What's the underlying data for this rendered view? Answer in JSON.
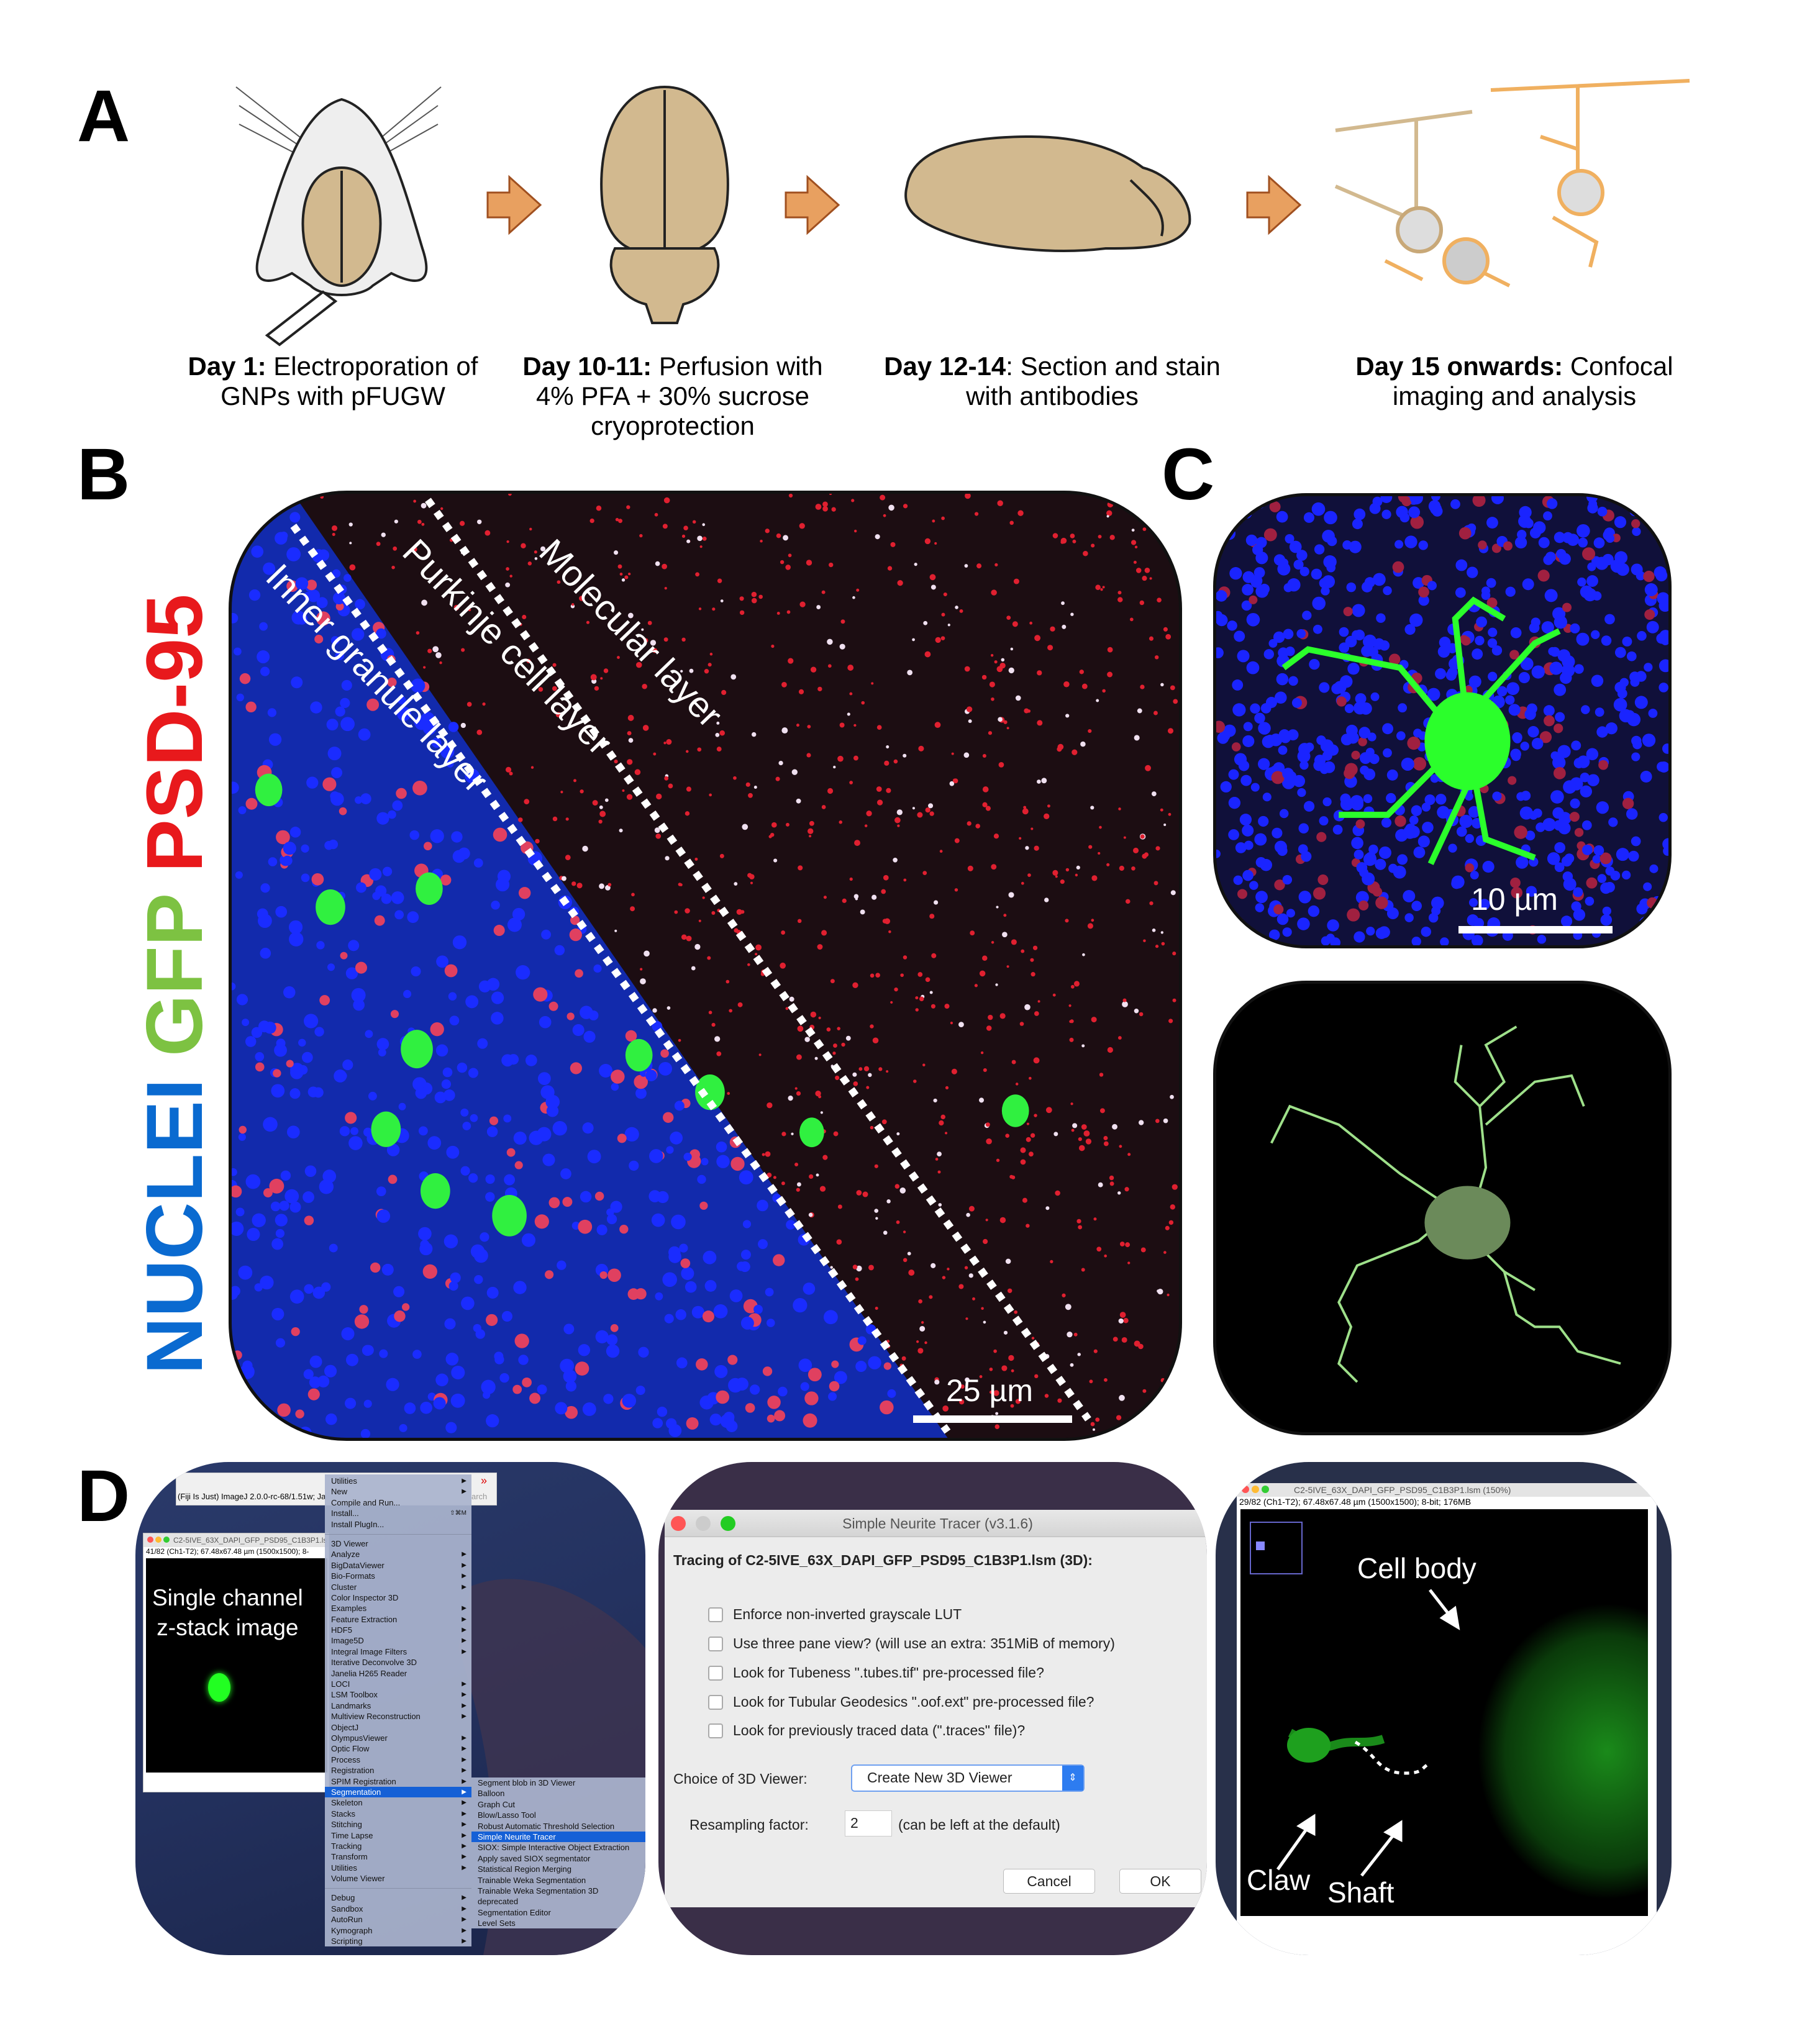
{
  "panel_labels": {
    "a": "A",
    "b": "B",
    "c": "C",
    "d": "D"
  },
  "panel_a": {
    "steps": [
      {
        "bold": "Day 1:",
        "text": " Electroporation of",
        "line2": "GNPs with pFUGW",
        "line3": ""
      },
      {
        "bold": "Day 10-11:",
        "text": " Perfusion with",
        "line2": "4% PFA + 30% sucrose",
        "line3": "cryoprotection"
      },
      {
        "bold": "Day 12-14",
        "text": ": Section and stain",
        "line2": "with antibodies",
        "line3": ""
      },
      {
        "bold": "Day 15 onwards:",
        "text": " Confocal",
        "line2": "imaging and analysis",
        "line3": ""
      }
    ],
    "arrow_color": "#e8a060",
    "tissue_color": "#d2b98f",
    "neuron_color": "#f0b060"
  },
  "stain_label": {
    "nuclei": "NUCLEI",
    "gfp": "GFP",
    "psd95": "PSD-95",
    "colors": {
      "nuclei": "#0a6ad0",
      "gfp": "#7dc242",
      "psd95": "#e8191c"
    }
  },
  "panel_b": {
    "layers": [
      "Inner granule layer",
      "Purkinje cell layer",
      "Molecular layer"
    ],
    "scale": "25 µm"
  },
  "panel_c": {
    "scale": "10 µm"
  },
  "panel_d": {
    "fiji_toolbar_title": "(Fiji Is Just) ImageJ 2.0.0-rc-68/1.51w; Ja",
    "fiji_search_fragment": "arch",
    "image_window_title": "C2-5IVE_63X_DAPI_GFP_PSD95_C1B3P1.ls",
    "image_window_info": "41/82 (Ch1-T2); 67.48x67.48 µm (1500x1500); 8-",
    "overlay_text": [
      "Single channel",
      "z-stack image"
    ],
    "menu_top": [
      {
        "label": "Utilities",
        "sub": true
      },
      {
        "label": "New",
        "sub": true
      },
      {
        "label": "Compile and Run...",
        "sub": false
      },
      {
        "label": "Install...",
        "sub": false,
        "shortcut": "⇧⌘M"
      },
      {
        "label": "Install PlugIn...",
        "sub": false
      }
    ],
    "menu_main": [
      {
        "label": "3D Viewer",
        "sub": false
      },
      {
        "label": "Analyze",
        "sub": true
      },
      {
        "label": "BigDataViewer",
        "sub": true
      },
      {
        "label": "Bio-Formats",
        "sub": true
      },
      {
        "label": "Cluster",
        "sub": true
      },
      {
        "label": "Color Inspector 3D",
        "sub": false
      },
      {
        "label": "Examples",
        "sub": true
      },
      {
        "label": "Feature Extraction",
        "sub": true
      },
      {
        "label": "HDF5",
        "sub": true
      },
      {
        "label": "Image5D",
        "sub": true
      },
      {
        "label": "Integral Image Filters",
        "sub": true
      },
      {
        "label": "Iterative Deconvolve 3D",
        "sub": false
      },
      {
        "label": "Janelia H265 Reader",
        "sub": false
      },
      {
        "label": "LOCI",
        "sub": true
      },
      {
        "label": "LSM Toolbox",
        "sub": true
      },
      {
        "label": "Landmarks",
        "sub": true
      },
      {
        "label": "Multiview Reconstruction",
        "sub": true
      },
      {
        "label": "ObjectJ",
        "sub": false
      },
      {
        "label": "OlympusViewer",
        "sub": true
      },
      {
        "label": "Optic Flow",
        "sub": true
      },
      {
        "label": "Process",
        "sub": true
      },
      {
        "label": "Registration",
        "sub": true
      },
      {
        "label": "SPIM Registration",
        "sub": true
      },
      {
        "label": "Segmentation",
        "sub": true,
        "selected": true
      },
      {
        "label": "Skeleton",
        "sub": true
      },
      {
        "label": "Stacks",
        "sub": true
      },
      {
        "label": "Stitching",
        "sub": true
      },
      {
        "label": "Time Lapse",
        "sub": true
      },
      {
        "label": "Tracking",
        "sub": true
      },
      {
        "label": "Transform",
        "sub": true
      },
      {
        "label": "Utilities",
        "sub": true
      },
      {
        "label": "Volume Viewer",
        "sub": false
      }
    ],
    "menu_bottom": [
      {
        "label": "Debug",
        "sub": true
      },
      {
        "label": "Sandbox",
        "sub": true
      },
      {
        "label": "AutoRun",
        "sub": true
      },
      {
        "label": "Kymograph",
        "sub": true
      },
      {
        "label": "Scripting",
        "sub": true
      }
    ],
    "submenu": [
      {
        "label": "Segment blob in 3D Viewer"
      },
      {
        "label": "Balloon"
      },
      {
        "label": "Graph Cut"
      },
      {
        "label": "Blow/Lasso Tool"
      },
      {
        "label": "Robust Automatic Threshold Selection"
      },
      {
        "label": "Simple Neurite Tracer",
        "selected": true
      },
      {
        "label": "SIOX: Simple Interactive Object Extraction"
      },
      {
        "label": "Apply saved SIOX segmentator"
      },
      {
        "label": "Statistical Region Merging"
      },
      {
        "label": "Trainable Weka Segmentation"
      },
      {
        "label": "Trainable Weka Segmentation 3D"
      },
      {
        "label": "deprecated",
        "sub": true
      },
      {
        "label": "Segmentation Editor"
      },
      {
        "label": "Level Sets"
      }
    ],
    "dialog": {
      "title": "Simple Neurite Tracer (v3.1.6)",
      "heading": "Tracing of C2-5IVE_63X_DAPI_GFP_PSD95_C1B3P1.lsm (3D):",
      "checkboxes": [
        {
          "label": "Enforce non-inverted grayscale LUT",
          "checked": false
        },
        {
          "label": "Use three pane view?  (will use an extra: 351MiB of memory)",
          "checked": false
        },
        {
          "label": "Look for Tubeness \".tubes.tif\" pre-processed file?",
          "checked": false
        },
        {
          "label": "Look for Tubular Geodesics \".oof.ext\" pre-processed file?",
          "checked": false
        },
        {
          "label": "Look for previously traced data (\".traces\" file)?",
          "checked": false
        }
      ],
      "viewer_label": "Choice of 3D Viewer:",
      "viewer_value": "Create New 3D Viewer",
      "resampling_label": "Resampling factor:",
      "resampling_value": "2",
      "resampling_hint": "(can be left at the default)",
      "cancel": "Cancel",
      "ok": "OK"
    },
    "tracer_window_title": "C2-5IVE_63X_DAPI_GFP_PSD95_C1B3P1.lsm (150%)",
    "tracer_window_info": "29/82 (Ch1-T2); 67.48x67.48 µm (1500x1500); 8-bit; 176MB",
    "annotations": {
      "cell_body": "Cell body",
      "claw": "Claw",
      "shaft": "Shaft"
    }
  }
}
